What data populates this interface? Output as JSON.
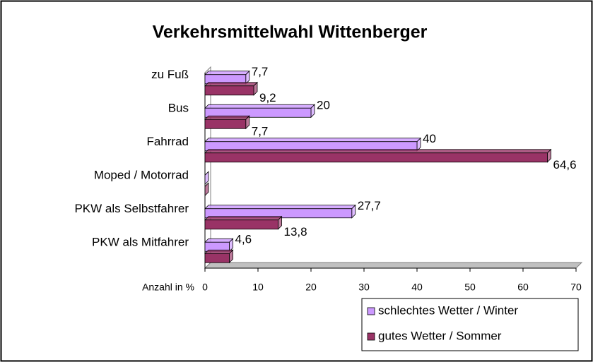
{
  "chart_data": {
    "type": "bar3d-horizontal",
    "title": "Verkehrsmittelwahl Wittenberger",
    "x_label": "Anzahl in %",
    "categories": [
      "zu Fuß",
      "Bus",
      "Fahrrad",
      "Moped / Motorrad",
      "PKW als Selbstfahrer",
      "PKW als Mitfahrer"
    ],
    "series": [
      {
        "name": "schlechtes Wetter / Winter",
        "color": "#cc99ff",
        "values": [
          7.7,
          20,
          40,
          0,
          27.7,
          4.6
        ],
        "value_labels": [
          "7,7",
          "20",
          "40",
          null,
          "27,7",
          "4,6"
        ]
      },
      {
        "name": "gutes Wetter / Sommer",
        "color": "#993366",
        "values": [
          9.2,
          7.7,
          64.6,
          0,
          13.8,
          4.6
        ],
        "value_labels": [
          "9,2",
          "7,7",
          "64,6",
          null,
          "13,8",
          null
        ]
      }
    ],
    "xlim": [
      0,
      70
    ],
    "xticks": [
      0,
      10,
      20,
      30,
      40,
      50,
      60,
      70
    ]
  }
}
